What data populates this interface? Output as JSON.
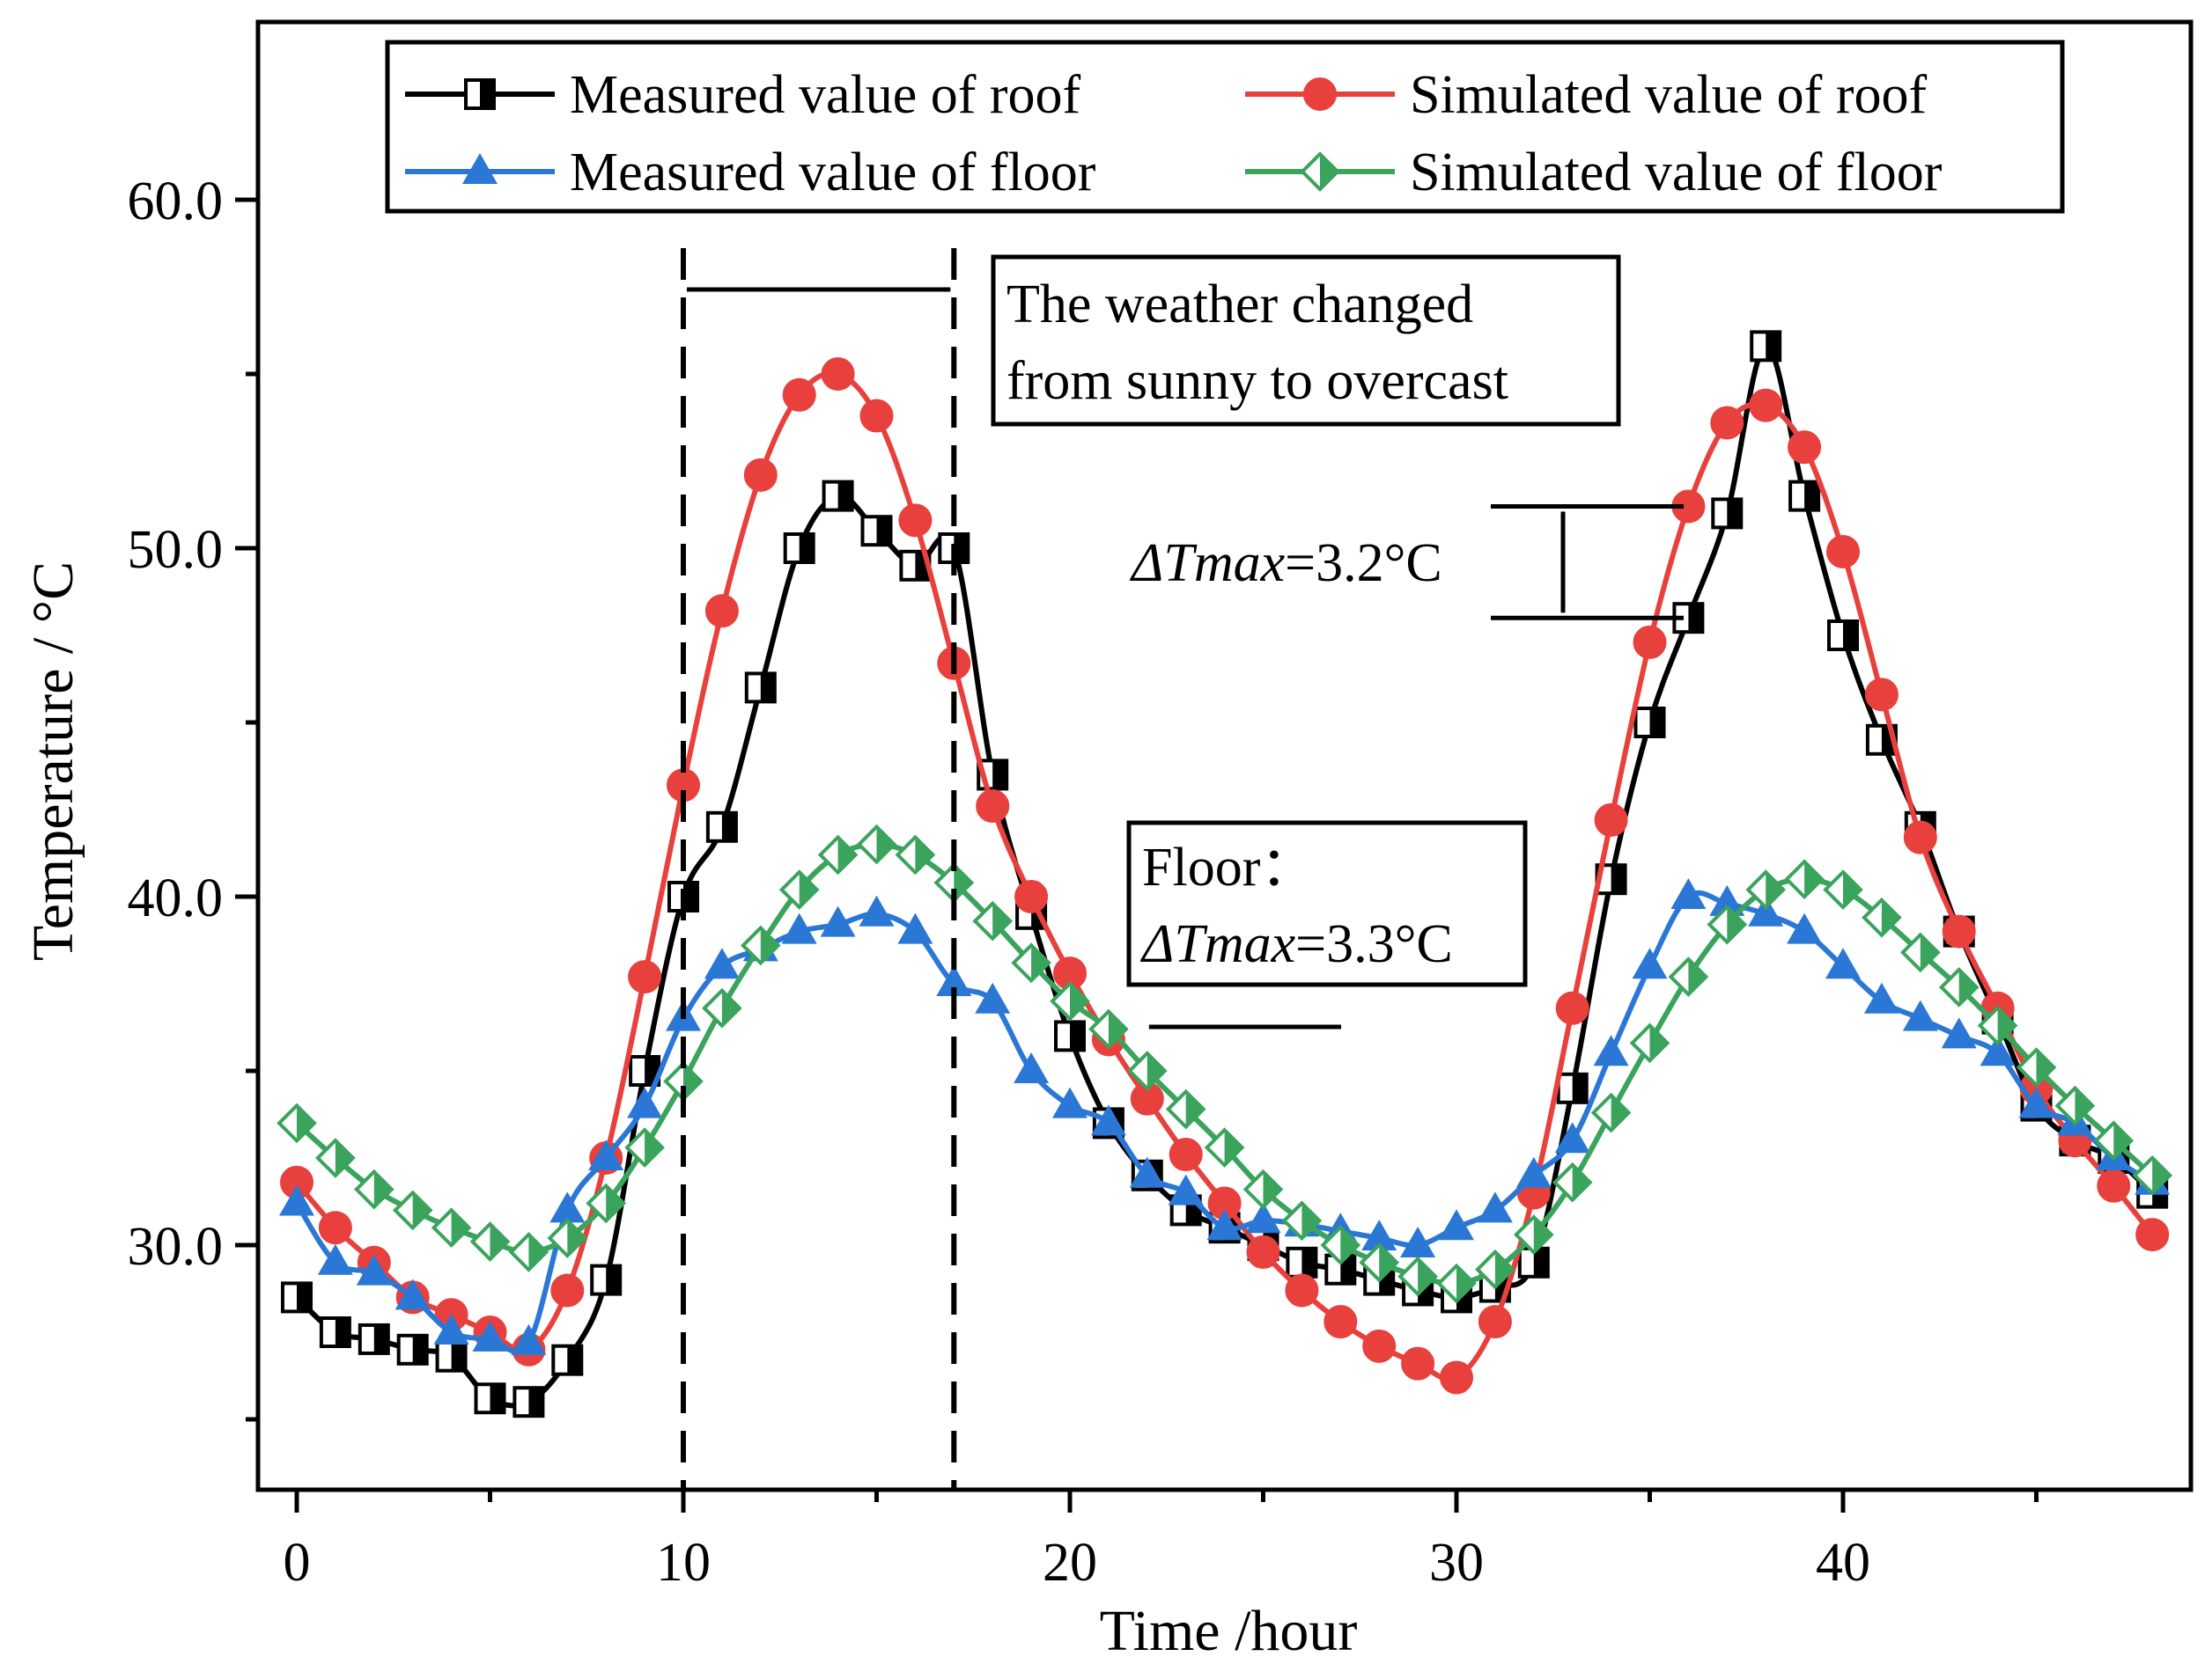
{
  "chart_data": {
    "type": "line",
    "xlabel": "Time /hour",
    "ylabel": "Temperature / °C",
    "xlim": [
      -1,
      49
    ],
    "ylim": [
      23.0,
      65.5
    ],
    "xticks": [
      0,
      10,
      20,
      30,
      40
    ],
    "yticks": [
      30.0,
      40.0,
      50.0,
      60.0
    ],
    "ytick_labels": [
      "30.0",
      "40.0",
      "50.0",
      "60.0"
    ],
    "grid": false,
    "legend_position": "top",
    "series": [
      {
        "name": "Measured value of roof",
        "color": "#000000",
        "marker": "half-filled-square",
        "x": [
          0,
          1,
          2,
          3,
          4,
          5,
          6,
          7,
          8,
          9,
          10,
          11,
          12,
          13,
          14,
          15,
          16,
          17,
          18,
          19,
          20,
          21,
          22,
          23,
          24,
          25,
          26,
          27,
          28,
          29,
          30,
          31,
          32,
          33,
          34,
          35,
          36,
          37,
          38,
          39,
          40,
          41,
          42,
          43,
          44,
          45,
          46,
          47,
          48
        ],
        "values": [
          28.5,
          27.5,
          27.3,
          27.0,
          26.8,
          25.6,
          25.5,
          26.7,
          29.0,
          35.0,
          40.0,
          42.0,
          46.0,
          50.0,
          51.5,
          50.5,
          49.5,
          50.0,
          43.5,
          39.5,
          36.0,
          33.5,
          32.0,
          31.0,
          30.5,
          30.0,
          29.5,
          29.3,
          29.0,
          28.7,
          28.5,
          28.8,
          29.5,
          34.5,
          40.5,
          45.0,
          48.0,
          51.0,
          55.8,
          51.5,
          47.5,
          44.5,
          42.0,
          39.0,
          36.5,
          34.0,
          33.0,
          32.5,
          31.5
        ]
      },
      {
        "name": "Simulated value of roof",
        "color": "#e8403c",
        "marker": "circle",
        "x": [
          0,
          1,
          2,
          3,
          4,
          5,
          6,
          7,
          8,
          9,
          10,
          11,
          12,
          13,
          14,
          15,
          16,
          17,
          18,
          19,
          20,
          21,
          22,
          23,
          24,
          25,
          26,
          27,
          28,
          29,
          30,
          31,
          32,
          33,
          34,
          35,
          36,
          37,
          38,
          39,
          40,
          41,
          42,
          43,
          44,
          45,
          46,
          47,
          48
        ],
        "values": [
          31.8,
          30.5,
          29.5,
          28.5,
          28.0,
          27.5,
          27.0,
          28.7,
          32.5,
          37.7,
          43.2,
          48.2,
          52.1,
          54.4,
          55.0,
          53.8,
          50.8,
          46.7,
          42.6,
          40.0,
          37.8,
          35.9,
          34.2,
          32.6,
          31.2,
          29.8,
          28.7,
          27.8,
          27.1,
          26.6,
          26.2,
          27.8,
          31.5,
          36.8,
          42.2,
          47.3,
          51.2,
          53.6,
          54.1,
          52.9,
          49.9,
          45.8,
          41.7,
          39.0,
          36.8,
          34.5,
          33.0,
          31.7,
          30.3
        ]
      },
      {
        "name": "Measured value of floor",
        "color": "#2a77d6",
        "marker": "triangle",
        "x": [
          0,
          1,
          2,
          3,
          4,
          5,
          6,
          7,
          8,
          9,
          10,
          11,
          12,
          13,
          14,
          15,
          16,
          17,
          18,
          19,
          20,
          21,
          22,
          23,
          24,
          25,
          26,
          27,
          28,
          29,
          30,
          31,
          32,
          33,
          34,
          35,
          36,
          37,
          38,
          39,
          40,
          41,
          42,
          43,
          44,
          45,
          46,
          47,
          48
        ],
        "values": [
          31.2,
          29.5,
          29.2,
          28.5,
          27.5,
          27.3,
          27.2,
          31.0,
          32.5,
          34.0,
          36.5,
          38.0,
          38.5,
          39.0,
          39.2,
          39.5,
          39.0,
          37.5,
          37.0,
          35.0,
          34.0,
          33.5,
          32.0,
          31.5,
          30.5,
          30.7,
          30.6,
          30.4,
          30.2,
          30.0,
          30.5,
          31.0,
          32.0,
          33.0,
          35.5,
          38.0,
          40.0,
          39.8,
          39.5,
          39.0,
          38.0,
          37.0,
          36.5,
          36.0,
          35.5,
          34.0,
          33.5,
          32.5,
          31.8
        ]
      },
      {
        "name": "Simulated value of floor",
        "color": "#3aa35c",
        "marker": "half-filled-diamond",
        "x": [
          0,
          1,
          2,
          3,
          4,
          5,
          6,
          7,
          8,
          9,
          10,
          11,
          12,
          13,
          14,
          15,
          16,
          17,
          18,
          19,
          20,
          21,
          22,
          23,
          24,
          25,
          26,
          27,
          28,
          29,
          30,
          31,
          32,
          33,
          34,
          35,
          36,
          37,
          38,
          39,
          40,
          41,
          42,
          43,
          44,
          45,
          46,
          47,
          48
        ],
        "values": [
          33.5,
          32.5,
          31.6,
          31.0,
          30.5,
          30.1,
          29.8,
          30.2,
          31.2,
          32.8,
          34.7,
          36.8,
          38.6,
          40.2,
          41.2,
          41.5,
          41.2,
          40.4,
          39.3,
          38.1,
          37.0,
          36.2,
          35.0,
          33.9,
          32.8,
          31.6,
          30.7,
          30.0,
          29.5,
          29.1,
          28.9,
          29.3,
          30.3,
          31.8,
          33.8,
          35.8,
          37.7,
          39.2,
          40.2,
          40.5,
          40.2,
          39.4,
          38.4,
          37.4,
          36.3,
          35.1,
          34.0,
          33.0,
          32.0
        ]
      }
    ],
    "annotations": {
      "weather_line1": "The weather changed",
      "weather_line2": "from sunny to overcast",
      "weather_range_x": [
        10,
        17
      ],
      "roof_delta_prefix": "ΔTmax",
      "roof_delta_value": "=3.2°C",
      "roof_delta_y": [
        51.2,
        48.0
      ],
      "floor_line1": "Floor：",
      "floor_delta_prefix": "ΔTmax",
      "floor_delta_value": "=3.3°C",
      "floor_arrow_target": [
        21.5,
        36.2
      ]
    }
  }
}
